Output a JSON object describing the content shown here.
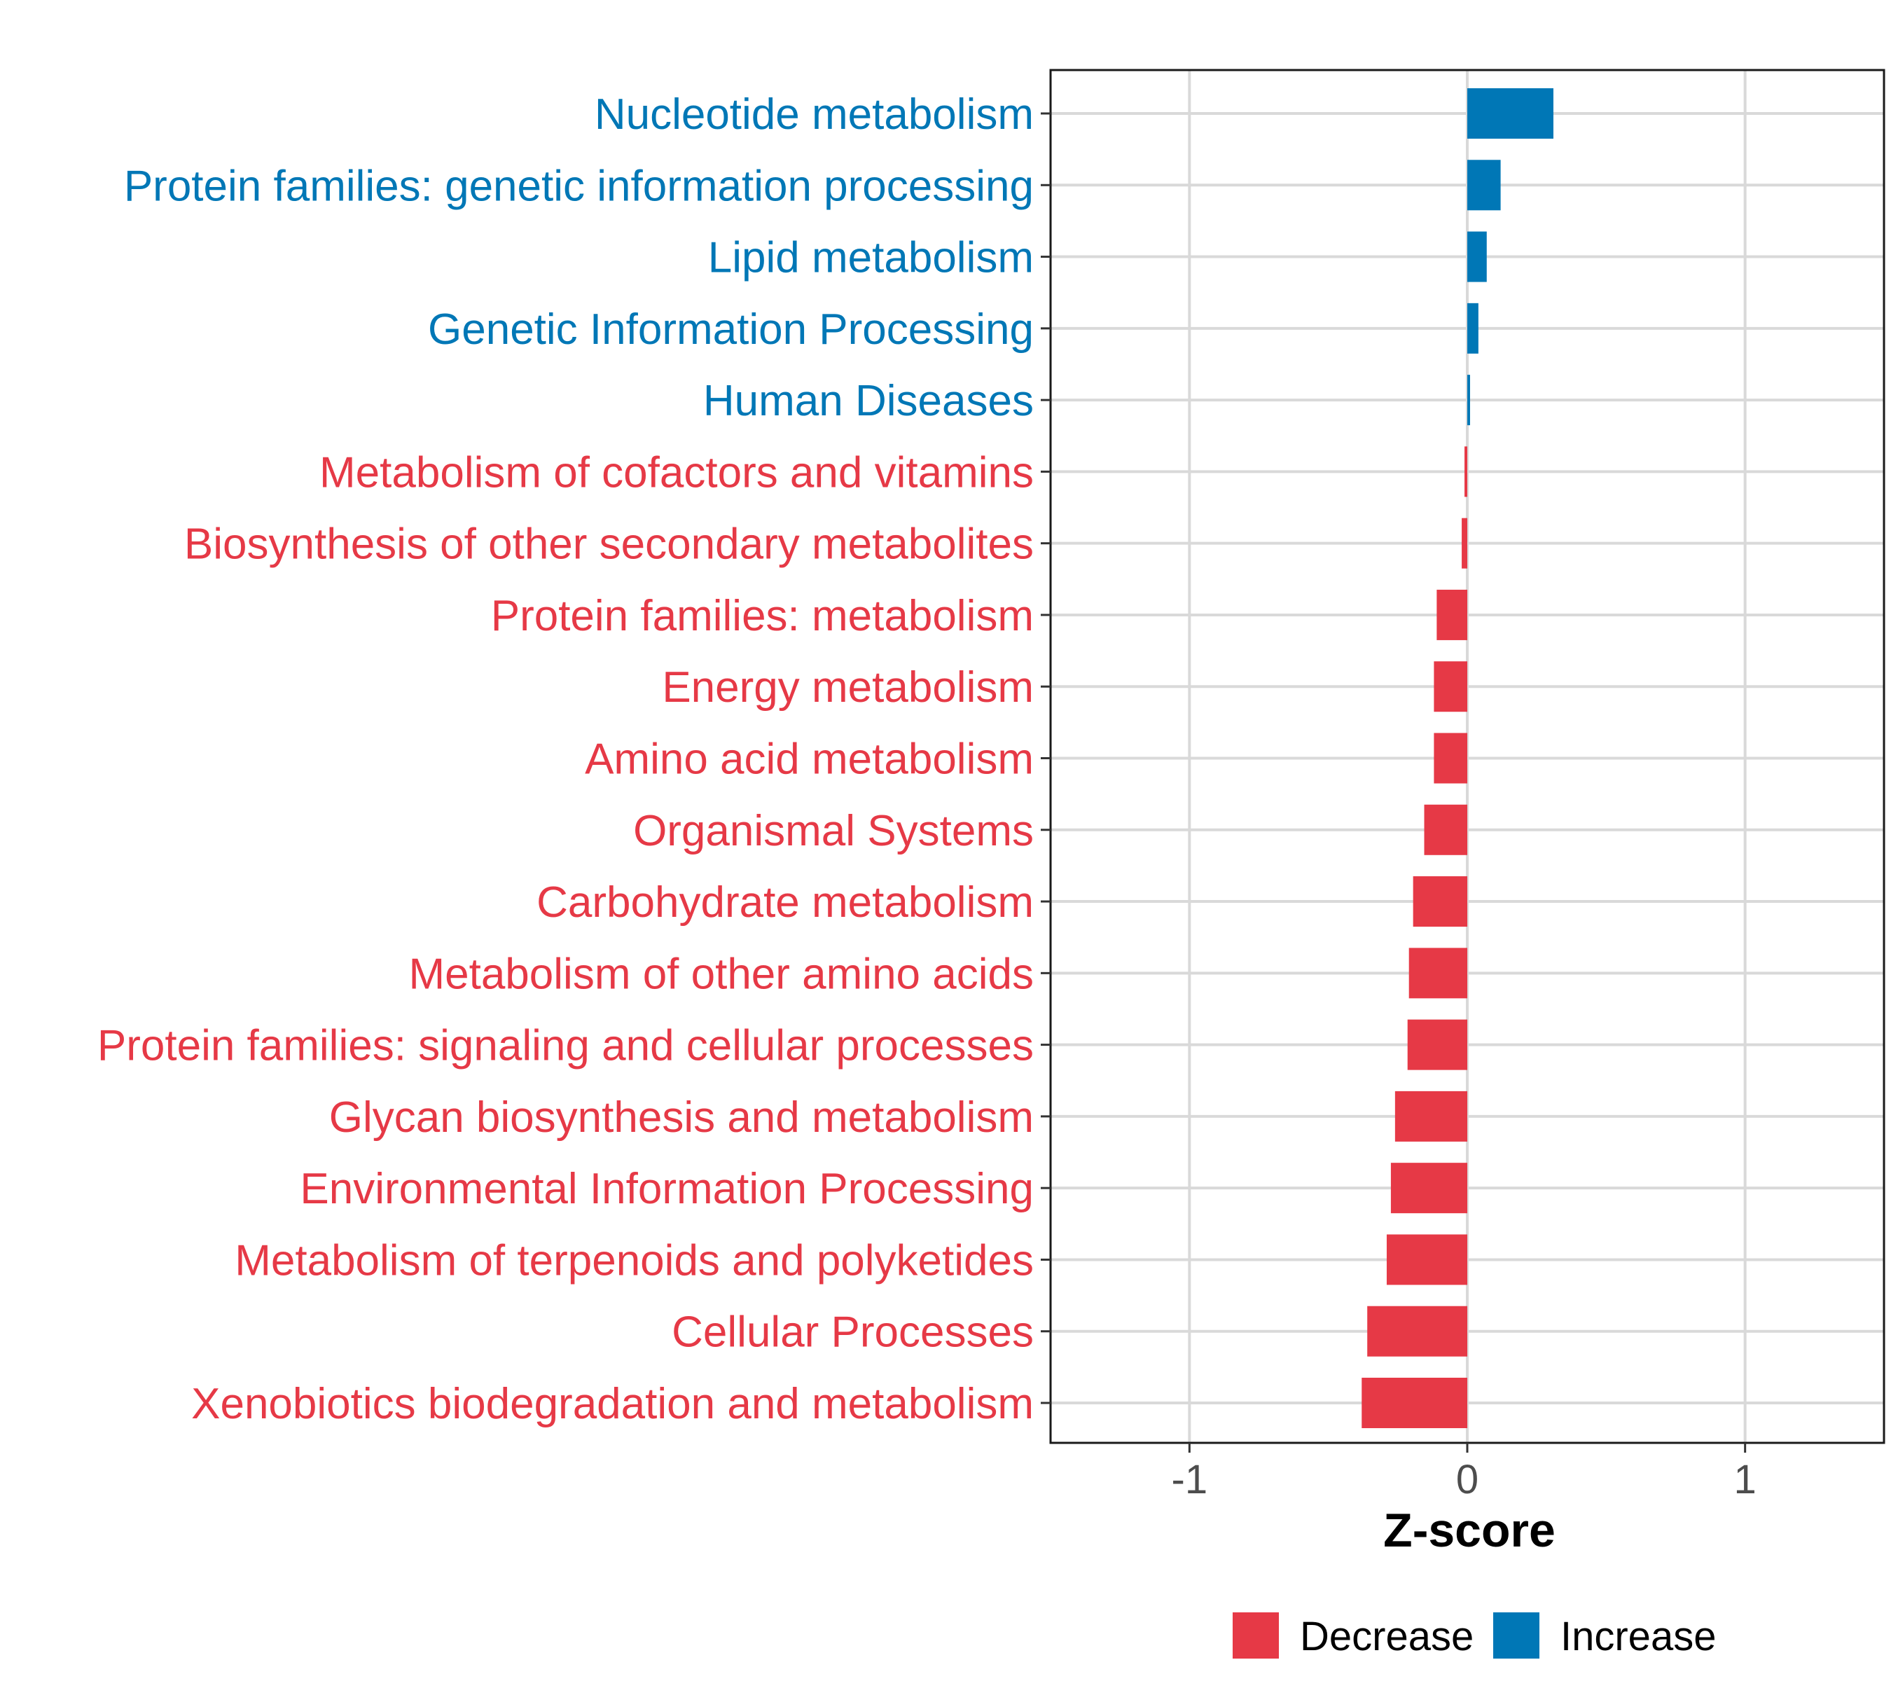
{
  "chart_data": {
    "type": "bar",
    "orientation": "horizontal",
    "xlabel": "Z-score",
    "ylabel": "",
    "xlim": [
      -1.5,
      1.5
    ],
    "xticks": [
      -1,
      0,
      1
    ],
    "xtick_labels": [
      "-1",
      "0",
      "1"
    ],
    "grid": true,
    "legend_position": "bottom",
    "colors": {
      "Decrease": "#e63946",
      "Increase": "#0077b6"
    },
    "legend": [
      {
        "label": "Decrease",
        "color": "#e63946"
      },
      {
        "label": "Increase",
        "color": "#0077b6"
      }
    ],
    "categories": [
      "Nucleotide metabolism",
      "Protein families: genetic information processing",
      "Lipid metabolism",
      "Genetic Information Processing",
      "Human Diseases",
      "Metabolism of cofactors and vitamins",
      "Biosynthesis of other secondary metabolites",
      "Protein families: metabolism",
      "Energy metabolism",
      "Amino acid metabolism",
      "Organismal Systems",
      "Carbohydrate metabolism",
      "Metabolism of other amino acids",
      "Protein families: signaling and cellular processes",
      "Glycan biosynthesis and metabolism",
      "Environmental Information Processing",
      "Metabolism of terpenoids and polyketides",
      "Cellular Processes",
      "Xenobiotics biodegradation and metabolism"
    ],
    "values": [
      0.31,
      0.12,
      0.07,
      0.04,
      0.01,
      -0.01,
      -0.02,
      -0.11,
      -0.12,
      -0.12,
      -0.155,
      -0.195,
      -0.21,
      -0.215,
      -0.26,
      -0.275,
      -0.29,
      -0.36,
      -0.38
    ],
    "groups": [
      "Increase",
      "Increase",
      "Increase",
      "Increase",
      "Increase",
      "Decrease",
      "Decrease",
      "Decrease",
      "Decrease",
      "Decrease",
      "Decrease",
      "Decrease",
      "Decrease",
      "Decrease",
      "Decrease",
      "Decrease",
      "Decrease",
      "Decrease",
      "Decrease"
    ]
  }
}
